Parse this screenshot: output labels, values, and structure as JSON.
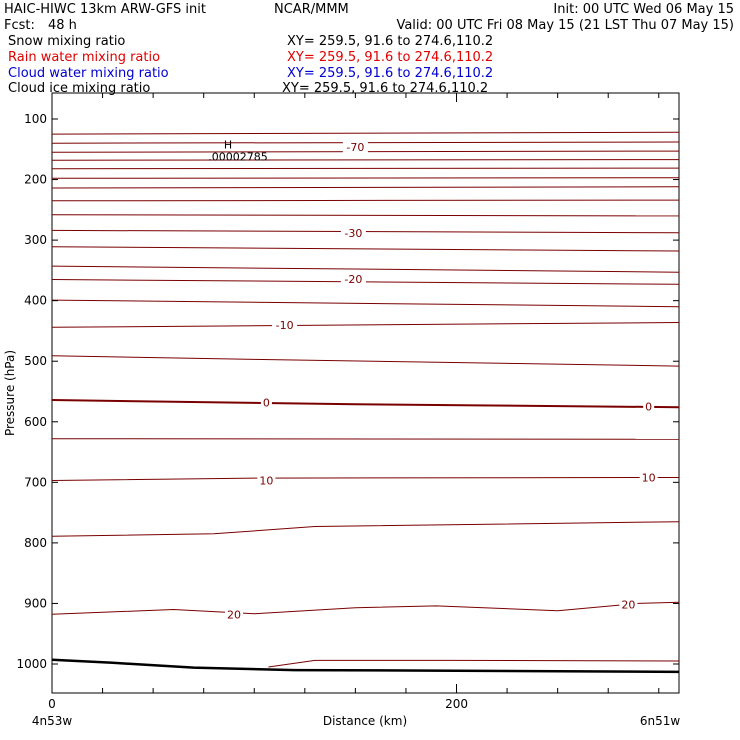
{
  "header": {
    "model": "HAIC-HIWC 13km ARW-GFS init",
    "org": "NCAR/MMM",
    "init": "Init: 00 UTC Wed 06 May 15",
    "fcst_label": "Fcst:",
    "fcst_value": "48 h",
    "valid": "Valid: 00 UTC Fri 08 May 15 (21 LST Thu 07 May 15)"
  },
  "fields": [
    {
      "name": "Snow mixing ratio",
      "xy": "XY= 259.5, 91.6 to 274.6,110.2",
      "color": "#000000"
    },
    {
      "name": "Rain water mixing ratio",
      "xy": "XY= 259.5, 91.6 to 274.6,110.2",
      "color": "#e00000"
    },
    {
      "name": "Cloud water mixing ratio",
      "xy": "XY= 259.5, 91.6 to 274.6,110.2",
      "color": "#0000d0"
    },
    {
      "name": "Cloud ice mixing ratio",
      "xy": "XY= 259.5, 91.6 to 274.6,110.2",
      "color": "#000000"
    }
  ],
  "chart_data": {
    "type": "line",
    "ylabel": "Pressure (hPa)",
    "xlabel": "Distance (km)",
    "x_left_label": "4n53w",
    "x_right_label": "6n51w",
    "xlim": [
      0,
      310
    ],
    "ylim": [
      1050,
      50
    ],
    "x_ticks": [
      0,
      200
    ],
    "x_ticks_labeled": [
      "0",
      "200"
    ],
    "y_ticks": [
      100,
      200,
      300,
      400,
      500,
      600,
      700,
      800,
      900,
      1000
    ],
    "grid": false,
    "contour_color": "#7a0000",
    "max_marker": {
      "symbol": "H",
      "value": ".00002785",
      "x": 87,
      "p": 152
    },
    "isotherms": [
      {
        "x": [
          0,
          310
        ],
        "p": [
          125,
          122
        ]
      },
      {
        "x": [
          0,
          310
        ],
        "p": [
          140,
          138
        ]
      },
      {
        "x": [
          0,
          310
        ],
        "p": [
          155,
          153
        ]
      },
      {
        "x": [
          0,
          310
        ],
        "p": [
          168,
          167
        ]
      },
      {
        "x": [
          0,
          310
        ],
        "p": [
          182,
          181
        ]
      },
      {
        "x": [
          0,
          310
        ],
        "p": [
          198,
          197
        ]
      },
      {
        "x": [
          0,
          310
        ],
        "p": [
          214,
          212
        ]
      },
      {
        "x": [
          0,
          310
        ],
        "p": [
          235,
          234
        ]
      },
      {
        "x": [
          0,
          310
        ],
        "p": [
          258,
          260
        ]
      },
      {
        "x": [
          0,
          310
        ],
        "p": [
          284,
          288
        ]
      },
      {
        "x": [
          0,
          310
        ],
        "p": [
          311,
          318
        ]
      },
      {
        "x": [
          0,
          310
        ],
        "p": [
          343,
          353
        ]
      },
      {
        "x": [
          0,
          310
        ],
        "p": [
          365,
          373
        ]
      },
      {
        "x": [
          0,
          310
        ],
        "p": [
          399,
          410
        ]
      },
      {
        "x": [
          0,
          310
        ],
        "p": [
          444,
          436
        ]
      },
      {
        "x": [
          0,
          100,
          310
        ],
        "p": [
          491,
          497,
          508
        ]
      },
      {
        "x": [
          0,
          60,
          150,
          210,
          310
        ],
        "p": [
          564,
          567,
          571,
          573,
          576
        ]
      },
      {
        "x": [
          0,
          310
        ],
        "p": [
          628,
          629
        ]
      },
      {
        "x": [
          0,
          100,
          310
        ],
        "p": [
          697,
          693,
          692
        ]
      },
      {
        "x": [
          0,
          80,
          130,
          310
        ],
        "p": [
          789,
          785,
          773,
          765
        ]
      },
      {
        "x": [
          0,
          60,
          100,
          150,
          190,
          250,
          290,
          310
        ],
        "p": [
          918,
          910,
          917,
          907,
          904,
          912,
          900,
          898
        ]
      },
      {
        "x": [
          107,
          130,
          200,
          310
        ],
        "p": [
          1005,
          994,
          994,
          995
        ]
      }
    ],
    "contour_labels": [
      {
        "text": "-70",
        "x": 150,
        "p": 146
      },
      {
        "text": "-30",
        "x": 149,
        "p": 288
      },
      {
        "text": "-20",
        "x": 149,
        "p": 364
      },
      {
        "text": "-10",
        "x": 115,
        "p": 440
      },
      {
        "text": "0",
        "x": 106,
        "p": 568
      },
      {
        "text": "0",
        "x": 295,
        "p": 575
      },
      {
        "text": "10",
        "x": 106,
        "p": 697
      },
      {
        "text": "10",
        "x": 295,
        "p": 692
      },
      {
        "text": "20",
        "x": 90,
        "p": 918
      },
      {
        "text": "20",
        "x": 285,
        "p": 902
      }
    ],
    "terrain": {
      "x": [
        0,
        30,
        70,
        120,
        200,
        310
      ],
      "p": [
        993,
        998,
        1006,
        1010,
        1011,
        1013
      ]
    }
  }
}
